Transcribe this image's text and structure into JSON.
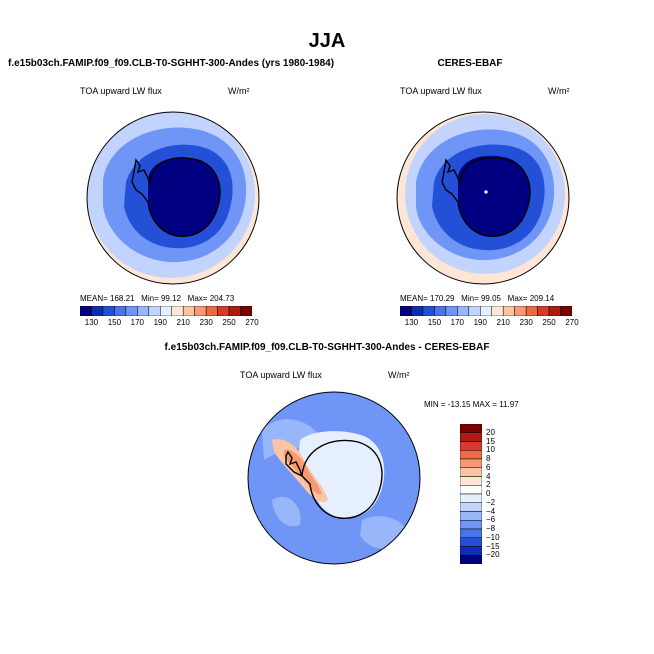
{
  "figure": {
    "season": "JJA",
    "left_title": "f.e15b03ch.FAMIP.f09_f09.CLB-T0-SGHHT-300-Andes (yrs 1980-1984)",
    "right_title": "CERES-EBAF",
    "diff_title": "f.e15b03ch.FAMIP.f09_f09.CLB-T0-SGHHT-300-Andes - CERES-EBAF"
  },
  "chart_data": [
    {
      "type": "heatmap",
      "projection": "south-polar-stereographic",
      "variable": "TOA upward LW flux",
      "units": "W/m²",
      "stats": {
        "mean_label": "MEAN=",
        "mean": "168.21",
        "min_label": "Min=",
        "min": "99.12",
        "max_label": "Max=",
        "max": "204.73"
      },
      "colorbar_ticks": [
        "130",
        "150",
        "170",
        "190",
        "210",
        "230",
        "250",
        "270"
      ],
      "colorbar_colors": [
        "#000080",
        "#0a2fb0",
        "#2450d8",
        "#4a74ee",
        "#6f95f6",
        "#98b6fa",
        "#c2d4fd",
        "#e6efff",
        "#fde6d6",
        "#fbc4a4",
        "#f79a73",
        "#ef6b45",
        "#d9392a",
        "#b01a14",
        "#7a0000"
      ],
      "field_colors": {
        "continent": "#000080",
        "coast_ring": "#2450d8",
        "midlat": "#6f95f6",
        "outer": "#c2d4fd",
        "edge": "#fde6d6"
      }
    },
    {
      "type": "heatmap",
      "projection": "south-polar-stereographic",
      "variable": "TOA upward LW flux",
      "units": "W/m²",
      "stats": {
        "mean_label": "MEAN=",
        "mean": "170.29",
        "min_label": "Min=",
        "min": "99.05",
        "max_label": "Max=",
        "max": "209.14"
      },
      "colorbar_ticks": [
        "130",
        "150",
        "170",
        "190",
        "210",
        "230",
        "250",
        "270"
      ],
      "colorbar_colors": [
        "#000080",
        "#0a2fb0",
        "#2450d8",
        "#4a74ee",
        "#6f95f6",
        "#98b6fa",
        "#c2d4fd",
        "#e6efff",
        "#fde6d6",
        "#fbc4a4",
        "#f79a73",
        "#ef6b45",
        "#d9392a",
        "#b01a14",
        "#7a0000"
      ],
      "field_colors": {
        "continent": "#000080",
        "coast_ring": "#2450d8",
        "midlat": "#6f95f6",
        "outer": "#c2d4fd",
        "edge": "#fde6d6"
      }
    },
    {
      "type": "heatmap",
      "projection": "south-polar-stereographic",
      "variable": "TOA upward LW flux",
      "units": "W/m²",
      "stats": {
        "min_label": "MIN =",
        "min": "-13.15",
        "max_label": "MAX =",
        "max": "11.97"
      },
      "colorbar_ticks": [
        "20",
        "15",
        "10",
        "8",
        "6",
        "4",
        "2",
        "0",
        "−2",
        "−4",
        "−6",
        "−8",
        "−10",
        "−15",
        "−20"
      ],
      "colorbar_colors": [
        "#7a0000",
        "#b01a14",
        "#d9392a",
        "#ef6b45",
        "#f79a73",
        "#fbc4a4",
        "#fde6d6",
        "#ffffff",
        "#e6efff",
        "#c2d4fd",
        "#98b6fa",
        "#6f95f6",
        "#4a74ee",
        "#2450d8",
        "#0a2fb0",
        "#000080"
      ],
      "field_colors": {
        "ocean": "#6f95f6",
        "ocean_light": "#98b6fa",
        "interior": "#e6efff",
        "warm": "#f79a73",
        "warm_light": "#fbc4a4"
      }
    }
  ]
}
